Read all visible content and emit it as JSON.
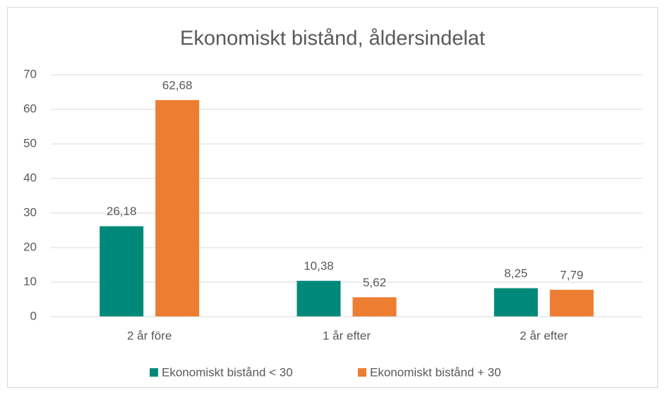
{
  "chart_data": {
    "type": "bar",
    "title": "Ekonomiskt bistånd, åldersindelat",
    "categories": [
      "2 år före",
      "1 år efter",
      "2 år efter"
    ],
    "series": [
      {
        "name": "Ekonomiskt bistånd < 30",
        "color": "#00897b",
        "values": [
          26.18,
          10.38,
          8.25
        ],
        "value_labels": [
          "26,18",
          "10,38",
          "8,25"
        ]
      },
      {
        "name": "Ekonomiskt bistånd + 30",
        "color": "#ed7d31",
        "values": [
          62.68,
          5.62,
          7.79
        ],
        "value_labels": [
          "62,68",
          "5,62",
          "7,79"
        ]
      }
    ],
    "ylim": [
      0,
      70
    ],
    "yticks": [
      0,
      10,
      20,
      30,
      40,
      50,
      60,
      70
    ],
    "grid": true,
    "legend": "bottom"
  }
}
